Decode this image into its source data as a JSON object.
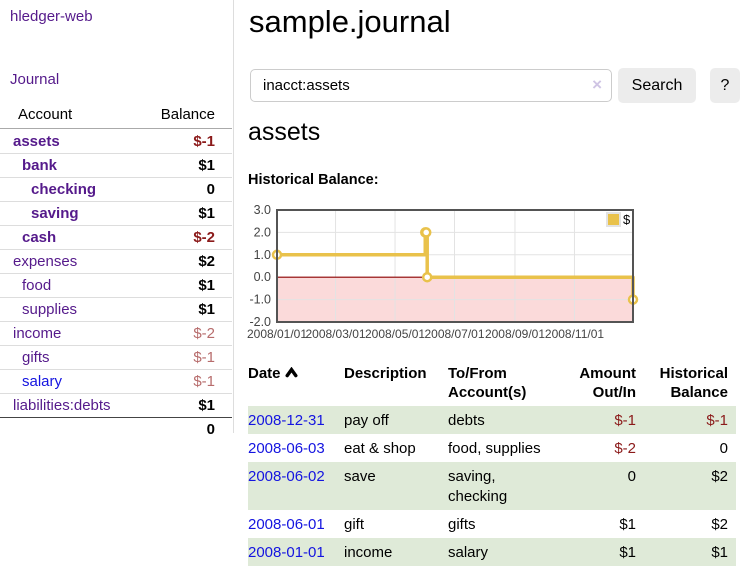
{
  "colors": {
    "link_visited": "#551a8b",
    "link_unvisited": "#1414e0",
    "negative_strong": "#8b1a1a",
    "negative_muted": "#b76c6c",
    "row_green": "#dfead8",
    "chart_line": "#e9c24b",
    "chart_negative_fill": "#fbdada",
    "chart_zero_line": "#8b0000"
  },
  "sidebar": {
    "brand": "hledger-web",
    "nav_journal": "Journal",
    "account_table": {
      "headers": [
        "Account",
        "Balance"
      ],
      "rows": [
        {
          "name": "assets",
          "balance": "$-1"
        },
        {
          "name": "bank",
          "balance": "$1"
        },
        {
          "name": "checking",
          "balance": "0"
        },
        {
          "name": "saving",
          "balance": "$1"
        },
        {
          "name": "cash",
          "balance": "$-2"
        },
        {
          "name": "expenses",
          "balance": "$2"
        },
        {
          "name": "food",
          "balance": "$1"
        },
        {
          "name": "supplies",
          "balance": "$1"
        },
        {
          "name": "income",
          "balance": "$-2"
        },
        {
          "name": "gifts",
          "balance": "$-1"
        },
        {
          "name": "salary",
          "balance": "$-1"
        },
        {
          "name": "liabilities:debts",
          "balance": "$1"
        }
      ],
      "total": "0"
    }
  },
  "main": {
    "title": "sample.journal",
    "search": {
      "value": "inacct:assets",
      "clear_icon": "×",
      "search_button": "Search",
      "help_button": "?"
    },
    "account_heading": "assets",
    "section_heading": "Historical Balance:"
  },
  "chart_data": {
    "type": "line",
    "step": true,
    "title": "Historical Balance:",
    "series": [
      {
        "name": "$",
        "points": [
          [
            "2008-01-01",
            1
          ],
          [
            "2008-06-01",
            2
          ],
          [
            "2008-06-02",
            2
          ],
          [
            "2008-06-03",
            0
          ],
          [
            "2008-12-31",
            -1
          ]
        ]
      }
    ],
    "xlim": [
      "2008-01-01",
      "2008-12-31"
    ],
    "ylim": [
      -2,
      3
    ],
    "x_ticks": [
      "2008-01-01",
      "2008-03-01",
      "2008-05-01",
      "2008-07-01",
      "2008-09-01",
      "2008-11-01"
    ],
    "y_ticks": [
      3.0,
      2.0,
      1.0,
      0.0,
      -1.0,
      -2.0
    ],
    "legend_position": "top-right",
    "grid": true
  },
  "register": {
    "headers": {
      "date": "Date",
      "description": "Description",
      "accounts": "To/From Account(s)",
      "amount": "Amount Out/In",
      "balance": "Historical Balance"
    },
    "rows": [
      {
        "date": "2008-12-31",
        "description": "pay off",
        "accounts": "debts",
        "amount": "$-1",
        "balance": "$-1"
      },
      {
        "date": "2008-06-03",
        "description": "eat & shop",
        "accounts": "food, supplies",
        "amount": "$-2",
        "balance": "0"
      },
      {
        "date": "2008-06-02",
        "description": "save",
        "accounts": "saving, checking",
        "amount": "0",
        "balance": "$2"
      },
      {
        "date": "2008-06-01",
        "description": "gift",
        "accounts": "gifts",
        "amount": "$1",
        "balance": "$2"
      },
      {
        "date": "2008-01-01",
        "description": "income",
        "accounts": "salary",
        "amount": "$1",
        "balance": "$1"
      }
    ]
  }
}
